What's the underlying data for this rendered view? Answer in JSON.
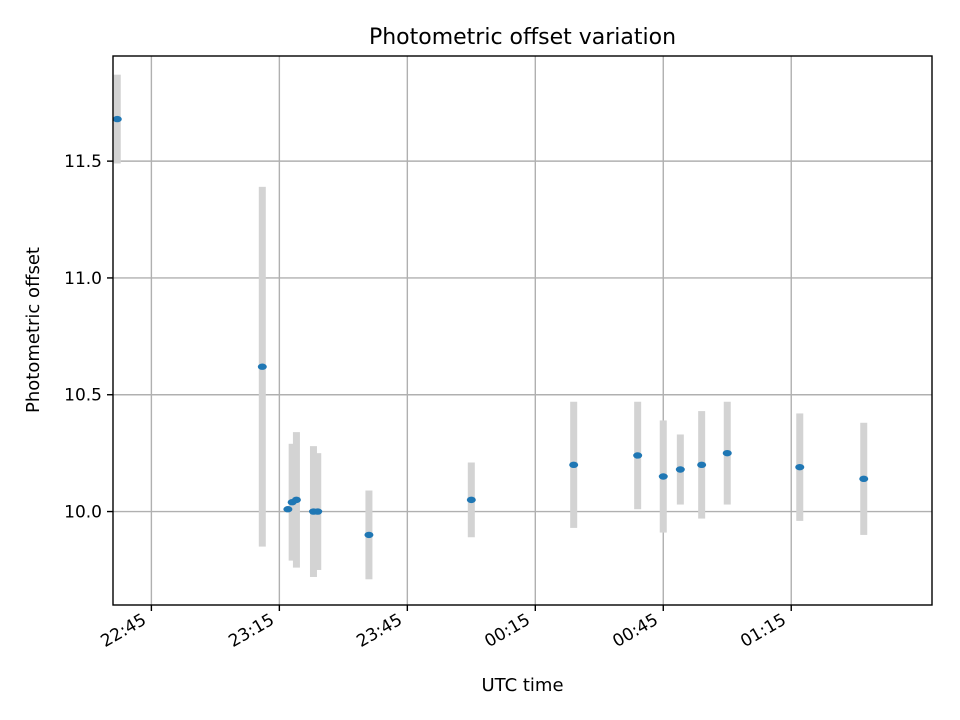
{
  "chart_data": {
    "type": "scatter",
    "title": "Photometric offset variation",
    "xlabel": "UTC time",
    "ylabel": "Photometric offset",
    "x_tick_labels": [
      "22:45",
      "23:15",
      "23:45",
      "00:15",
      "00:45",
      "01:15"
    ],
    "x_ticks": [
      "22:45",
      "23:15",
      "23:45",
      "00:15",
      "00:45",
      "01:15"
    ],
    "y_ticks": [
      10.0,
      10.5,
      11.0,
      11.5
    ],
    "y_tick_labels": [
      "10.0",
      "10.5",
      "11.0",
      "11.5"
    ],
    "xlim": [
      "22:36",
      "01:48"
    ],
    "ylim": [
      9.6,
      11.95
    ],
    "grid": true,
    "legend": "none",
    "marker_color": "#1f77b4",
    "errorbar_color": "#d3d3d3",
    "points": [
      {
        "x": "22:37",
        "y": 11.68,
        "err": 0.19
      },
      {
        "x": "23:11",
        "y": 10.62,
        "err": 0.77
      },
      {
        "x": "23:17",
        "y": 10.01,
        "err": 0.0
      },
      {
        "x": "23:18",
        "y": 10.04,
        "err": 0.25
      },
      {
        "x": "23:19",
        "y": 10.05,
        "err": 0.29
      },
      {
        "x": "23:23",
        "y": 10.0,
        "err": 0.28
      },
      {
        "x": "23:24",
        "y": 10.0,
        "err": 0.25
      },
      {
        "x": "23:36",
        "y": 9.9,
        "err": 0.19
      },
      {
        "x": "00:00",
        "y": 10.05,
        "err": 0.16
      },
      {
        "x": "00:24",
        "y": 10.2,
        "err": 0.27
      },
      {
        "x": "00:39",
        "y": 10.24,
        "err": 0.23
      },
      {
        "x": "00:45",
        "y": 10.15,
        "err": 0.24
      },
      {
        "x": "00:49",
        "y": 10.18,
        "err": 0.15
      },
      {
        "x": "00:54",
        "y": 10.2,
        "err": 0.23
      },
      {
        "x": "01:00",
        "y": 10.25,
        "err": 0.22
      },
      {
        "x": "01:17",
        "y": 10.19,
        "err": 0.23
      },
      {
        "x": "01:32",
        "y": 10.14,
        "err": 0.24
      }
    ]
  }
}
